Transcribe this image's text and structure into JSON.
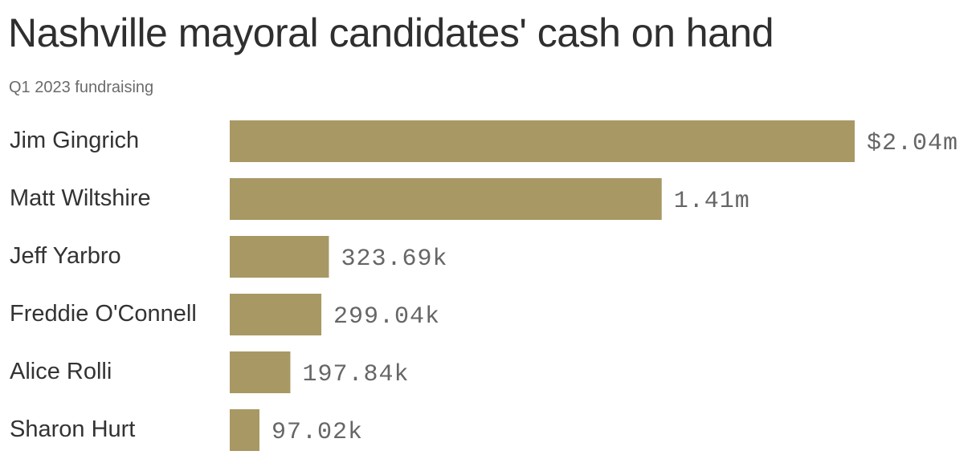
{
  "header": {
    "title": "Nashville mayoral candidates' cash on hand",
    "subtitle": "Q1 2023 fundraising"
  },
  "colors": {
    "bar": "#a89863"
  },
  "chart_data": {
    "type": "bar",
    "orientation": "horizontal",
    "title": "Nashville mayoral candidates' cash on hand",
    "subtitle": "Q1 2023 fundraising",
    "categories": [
      "Jim Gingrich",
      "Matt Wiltshire",
      "Jeff Yarbro",
      "Freddie O'Connell",
      "Alice Rolli",
      "Sharon Hurt"
    ],
    "values": [
      2040000,
      1410000,
      323690,
      299040,
      197840,
      97020
    ],
    "value_labels": [
      "$2.04m",
      "1.41m",
      "323.69k",
      "299.04k",
      "197.84k",
      "97.02k"
    ],
    "xlabel": "",
    "ylabel": "",
    "grid": false
  }
}
